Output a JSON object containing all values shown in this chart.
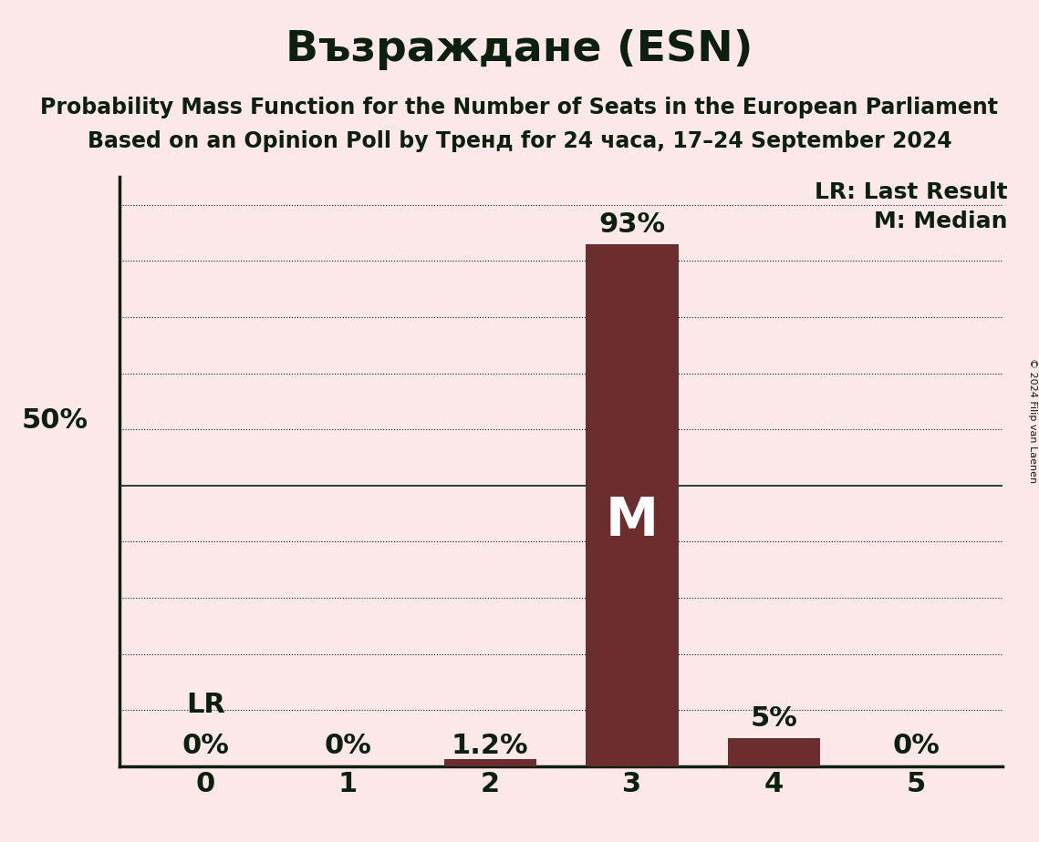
{
  "title": "Възраждане (ESN)",
  "subtitle1": "Probability Mass Function for the Number of Seats in the European Parliament",
  "subtitle2": "Based on an Opinion Poll by Тренд for 24 часа, 17–24 September 2024",
  "copyright": "© 2024 Filip van Laenen",
  "categories": [
    0,
    1,
    2,
    3,
    4,
    5
  ],
  "values": [
    0.0,
    0.0,
    0.012,
    0.93,
    0.05,
    0.0
  ],
  "bar_color": "#6b2d2d",
  "background_color": "#fce8e8",
  "bar_labels": [
    "0%",
    "0%",
    "1.2%",
    "93%",
    "5%",
    "0%"
  ],
  "median": 3,
  "last_result": 0,
  "legend_lr": "LR: Last Result",
  "legend_m": "M: Median",
  "ylabel_50": "50%",
  "ylim": [
    0,
    1.05
  ],
  "yticks": [
    0.1,
    0.2,
    0.3,
    0.4,
    0.5,
    0.6,
    0.7,
    0.8,
    0.9,
    1.0
  ],
  "title_fontsize": 34,
  "subtitle_fontsize": 17,
  "label_fontsize": 22,
  "tick_fontsize": 22,
  "annotation_fontsize": 22,
  "legend_fontsize": 18
}
